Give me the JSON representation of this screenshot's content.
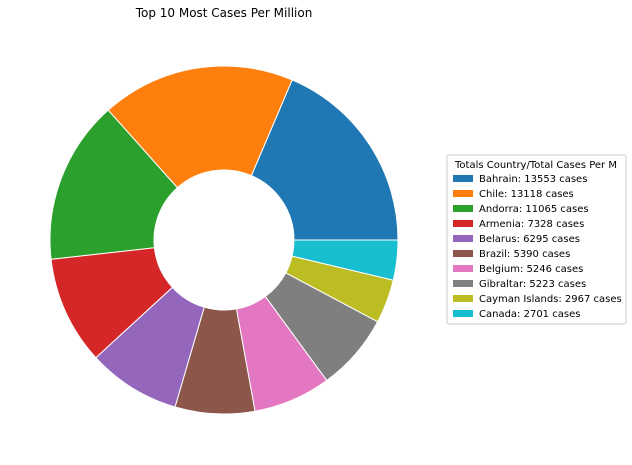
{
  "chart_data": {
    "type": "pie",
    "donut": true,
    "title": "Top 10 Most Cases Per Million",
    "legend_title": "Totals Country/Total Cases Per M",
    "legend_placement": "center-right",
    "slices": [
      {
        "name": "Bahrain",
        "value": 13553,
        "label": "Bahrain: 13553 cases",
        "color": "#1f77b4"
      },
      {
        "name": "Chile",
        "value": 13118,
        "label": "Chile: 13118 cases",
        "color": "#ff7f0e"
      },
      {
        "name": "Andorra",
        "value": 11065,
        "label": "Andorra: 11065 cases",
        "color": "#2ca02c"
      },
      {
        "name": "Armenia",
        "value": 7328,
        "label": "Armenia: 7328 cases",
        "color": "#d62728"
      },
      {
        "name": "Belarus",
        "value": 6295,
        "label": "Belarus: 6295 cases",
        "color": "#9467bd"
      },
      {
        "name": "Brazil",
        "value": 5390,
        "label": "Brazil: 5390 cases",
        "color": "#8c564b"
      },
      {
        "name": "Belgium",
        "value": 5246,
        "label": "Belgium: 5246 cases",
        "color": "#e377c2"
      },
      {
        "name": "Gibraltar",
        "value": 5223,
        "label": "Gibraltar: 5223 cases",
        "color": "#7f7f7f"
      },
      {
        "name": "Cayman Islands",
        "value": 2967,
        "label": "Cayman Islands: 2967 cases",
        "color": "#bcbd22"
      },
      {
        "name": "Canada",
        "value": 2701,
        "label": "Canada: 2701 cases",
        "color": "#17becf"
      }
    ]
  }
}
